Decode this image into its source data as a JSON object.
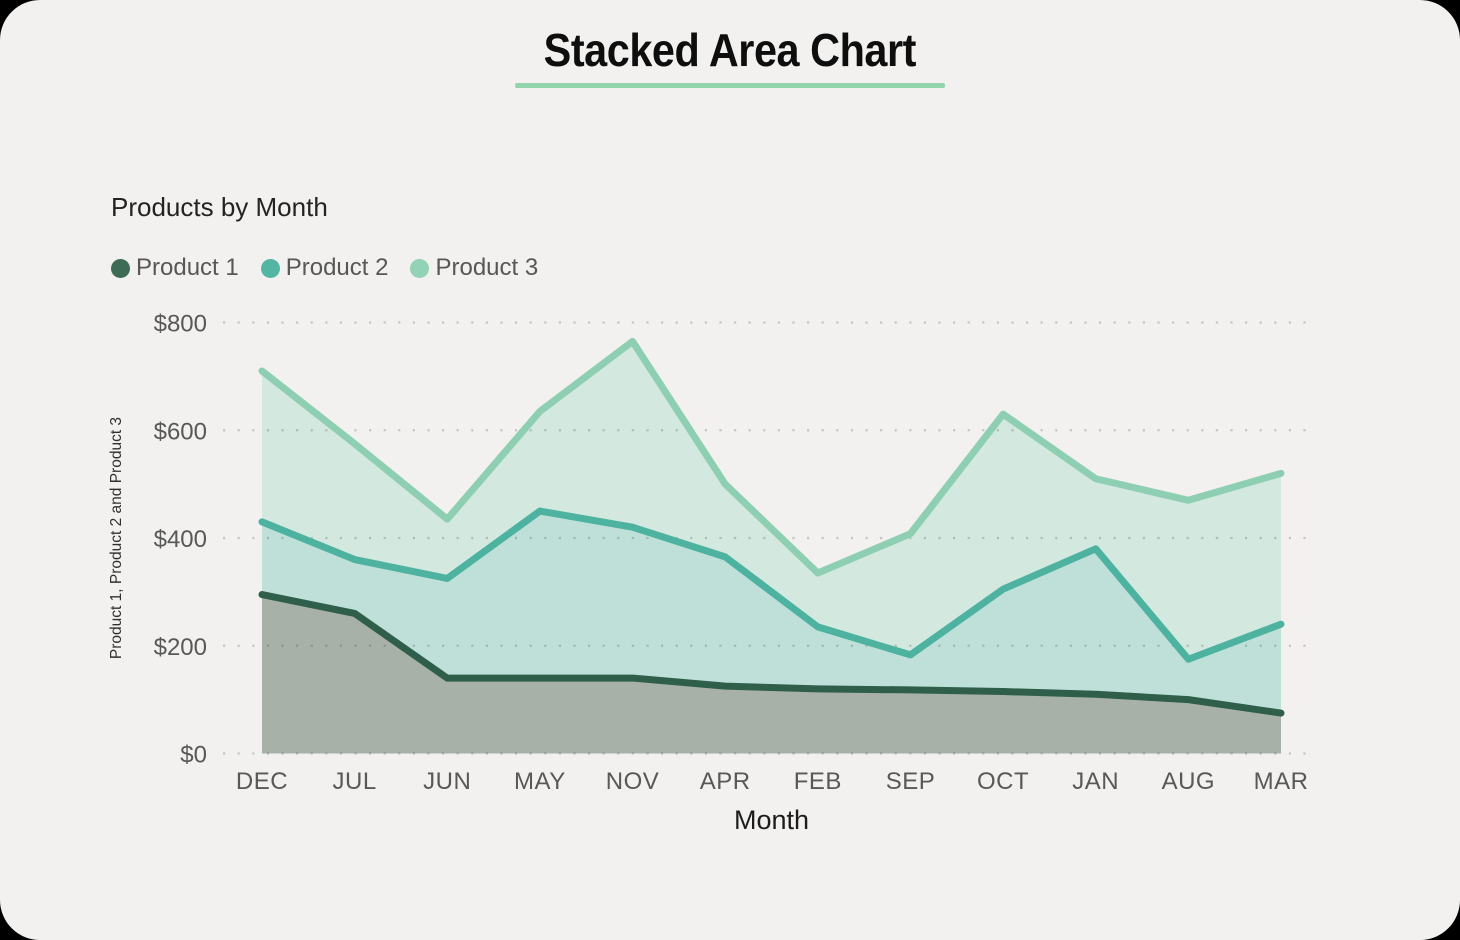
{
  "page": {
    "card_background": "#f2f1ef",
    "outer_background": "#000000"
  },
  "header": {
    "title": "Stacked Area Chart",
    "underline_color": "#92d5ac"
  },
  "chart": {
    "heading": "Products by Month"
  },
  "chart_data": {
    "type": "area",
    "stacked": true,
    "title": "Products by Month",
    "xlabel": "Month",
    "ylabel": "Product 1, Product 2 and Product 3",
    "categories": [
      "DEC",
      "JUL",
      "JUN",
      "MAY",
      "NOV",
      "APR",
      "FEB",
      "SEP",
      "OCT",
      "JAN",
      "AUG",
      "MAR"
    ],
    "series": [
      {
        "name": "Product 1",
        "values": [
          295,
          260,
          140,
          140,
          140,
          125,
          120,
          118,
          115,
          110,
          100,
          75
        ],
        "line_color": "#2f5f4b",
        "fill_color": "#a7b1a8",
        "legend_color": "#3e6b55"
      },
      {
        "name": "Product 2",
        "values": [
          135,
          100,
          185,
          310,
          280,
          240,
          115,
          65,
          190,
          270,
          75,
          165
        ],
        "line_color": "#4db3a0",
        "fill_color": "#bfe0d8",
        "legend_color": "#54b5a2"
      },
      {
        "name": "Product 3",
        "values": [
          280,
          215,
          110,
          185,
          345,
          135,
          100,
          225,
          325,
          130,
          295,
          280
        ],
        "line_color": "#8ecfb4",
        "fill_color": "#d3e8de",
        "legend_color": "#92d2b6"
      }
    ],
    "stacked_totals": [
      710,
      575,
      435,
      635,
      765,
      500,
      335,
      408,
      630,
      510,
      470,
      520
    ],
    "ylim": [
      0,
      800
    ],
    "yticks": [
      {
        "value": 0,
        "label": "$0"
      },
      {
        "value": 200,
        "label": "$200"
      },
      {
        "value": 400,
        "label": "$400"
      },
      {
        "value": 600,
        "label": "$600"
      },
      {
        "value": 800,
        "label": "$800"
      }
    ],
    "grid": "horizontal-dotted",
    "legend_position": "top-left",
    "currency_prefix": "$"
  }
}
